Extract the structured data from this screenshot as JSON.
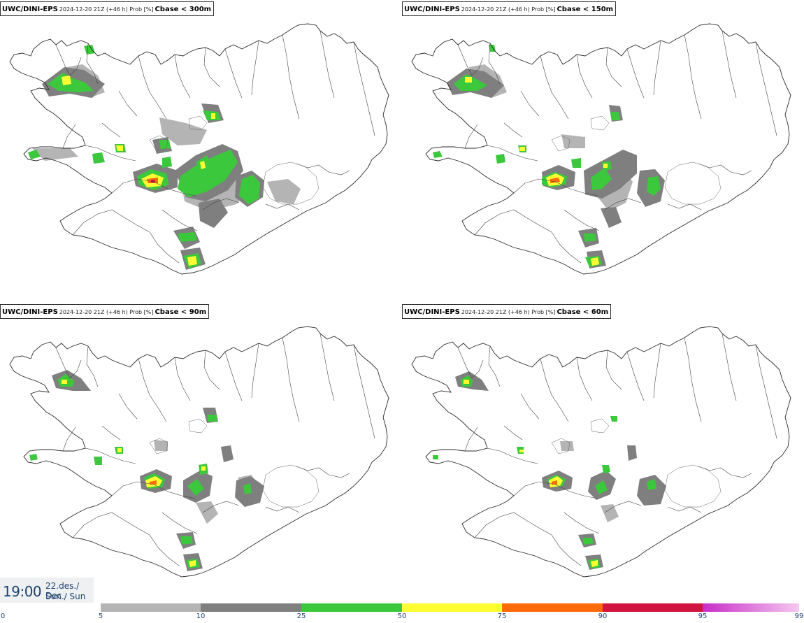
{
  "panels": [
    {
      "model": "UWC/DINI-EPS",
      "run": "2024-12-20 21Z (+46 h) Prob [%]",
      "field": "Cbase < 300m"
    },
    {
      "model": "UWC/DINI-EPS",
      "run": "2024-12-20 21Z (+46 h) Prob [%]",
      "field": "Cbase < 150m"
    },
    {
      "model": "UWC/DINI-EPS",
      "run": "2024-12-20 21Z (+46 h) Prob [%]",
      "field": "Cbase < 90m"
    },
    {
      "model": "UWC/DINI-EPS",
      "run": "2024-12-20 21Z (+46 h) Prob [%]",
      "field": "Cbase < 60m"
    }
  ],
  "valid_time": {
    "time": "19:00",
    "date": "22.des./ Dec",
    "weekday": "Sun./ Sun"
  },
  "legend": {
    "ticks": [
      "0",
      "5",
      "10",
      "25",
      "50",
      "75",
      "90",
      "95",
      "99"
    ],
    "classes": [
      {
        "from": "5",
        "to": "10",
        "color": "#b4b4b4"
      },
      {
        "from": "10",
        "to": "25",
        "color": "#7f7f7f"
      },
      {
        "from": "25",
        "to": "50",
        "color": "#3cc83c"
      },
      {
        "from": "50",
        "to": "75",
        "color": "#ffff32"
      },
      {
        "from": "75",
        "to": "90",
        "color": "#ff6a0a"
      },
      {
        "from": "90",
        "to": "95",
        "color": "#d21441"
      },
      {
        "from": "95",
        "to": "99",
        "color": "#c82dc8",
        "gradient_to": "#f5c8f0"
      }
    ]
  }
}
